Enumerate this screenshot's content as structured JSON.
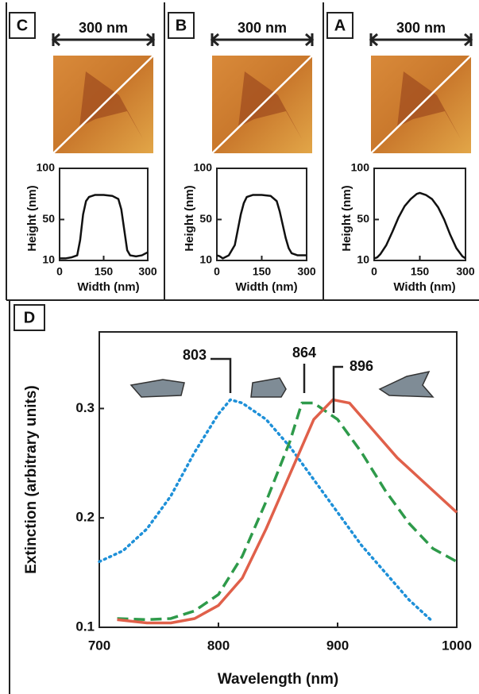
{
  "chart_data": [
    {
      "type": "line",
      "panel": "C",
      "scale_bar": "300 nm",
      "xlabel": "Width (nm)",
      "ylabel": "Height (nm)",
      "xlim": [
        0,
        300
      ],
      "xticks": [
        0,
        150,
        300
      ],
      "ylim": [
        10,
        100
      ],
      "yticks": [
        10,
        50,
        100
      ],
      "series": [
        {
          "color": "#111111",
          "x": [
            0,
            20,
            40,
            60,
            70,
            80,
            90,
            100,
            120,
            150,
            180,
            200,
            210,
            220,
            230,
            240,
            260,
            280,
            300
          ],
          "values": [
            12,
            12,
            13,
            15,
            30,
            55,
            68,
            72,
            74,
            74,
            73,
            70,
            60,
            40,
            20,
            15,
            14,
            15,
            18
          ]
        }
      ]
    },
    {
      "type": "line",
      "panel": "B",
      "scale_bar": "300 nm",
      "xlabel": "Width (nm)",
      "ylabel": "Height (nm)",
      "xlim": [
        0,
        300
      ],
      "xticks": [
        0,
        150,
        300
      ],
      "ylim": [
        10,
        100
      ],
      "yticks": [
        10,
        50,
        100
      ],
      "series": [
        {
          "color": "#111111",
          "x": [
            0,
            10,
            20,
            40,
            60,
            70,
            80,
            90,
            100,
            120,
            150,
            180,
            200,
            210,
            220,
            230,
            240,
            250,
            270,
            300
          ],
          "values": [
            15,
            14,
            12,
            15,
            25,
            40,
            55,
            66,
            72,
            74,
            74,
            73,
            68,
            58,
            45,
            32,
            22,
            17,
            15,
            15
          ]
        }
      ]
    },
    {
      "type": "line",
      "panel": "A",
      "scale_bar": "300 nm",
      "xlabel": "Width (nm)",
      "ylabel": "Height (nm)",
      "xlim": [
        0,
        300
      ],
      "xticks": [
        0,
        150,
        300
      ],
      "ylim": [
        10,
        100
      ],
      "yticks": [
        10,
        50,
        100
      ],
      "series": [
        {
          "color": "#111111",
          "x": [
            0,
            10,
            20,
            40,
            60,
            80,
            100,
            120,
            140,
            150,
            170,
            190,
            210,
            230,
            250,
            270,
            290,
            300
          ],
          "values": [
            12,
            13,
            16,
            25,
            38,
            52,
            63,
            70,
            75,
            76,
            74,
            70,
            62,
            50,
            35,
            22,
            14,
            12
          ]
        }
      ]
    },
    {
      "type": "line",
      "panel": "D",
      "xlabel": "Wavelength (nm)",
      "ylabel": "Extinction (arbitrary units)",
      "xlim": [
        700,
        1000
      ],
      "xticks": [
        700,
        800,
        900,
        1000
      ],
      "ylim": [
        0.1,
        0.37
      ],
      "yticks": [
        0.1,
        0.2,
        0.3
      ],
      "annotations": [
        "803",
        "864",
        "896"
      ],
      "series": [
        {
          "color": "#1e90d8",
          "dash": "dotted",
          "x": [
            700,
            720,
            740,
            760,
            780,
            800,
            810,
            820,
            840,
            860,
            880,
            900,
            920,
            940,
            960,
            980
          ],
          "values": [
            0.16,
            0.17,
            0.19,
            0.22,
            0.26,
            0.295,
            0.308,
            0.305,
            0.29,
            0.265,
            0.235,
            0.205,
            0.175,
            0.15,
            0.125,
            0.105
          ]
        },
        {
          "color": "#2e9a4a",
          "dash": "dashed",
          "x": [
            715,
            740,
            760,
            780,
            800,
            820,
            840,
            860,
            870,
            880,
            900,
            920,
            940,
            960,
            980,
            1000
          ],
          "values": [
            0.108,
            0.107,
            0.108,
            0.115,
            0.13,
            0.165,
            0.215,
            0.27,
            0.305,
            0.305,
            0.29,
            0.26,
            0.225,
            0.195,
            0.172,
            0.16
          ]
        },
        {
          "color": "#e0604a",
          "dash": "solid",
          "x": [
            715,
            740,
            760,
            780,
            800,
            820,
            840,
            860,
            880,
            896,
            910,
            930,
            950,
            970,
            1000
          ],
          "values": [
            0.107,
            0.104,
            0.104,
            0.108,
            0.12,
            0.145,
            0.19,
            0.24,
            0.29,
            0.308,
            0.305,
            0.28,
            0.255,
            0.235,
            0.205
          ]
        }
      ]
    }
  ]
}
